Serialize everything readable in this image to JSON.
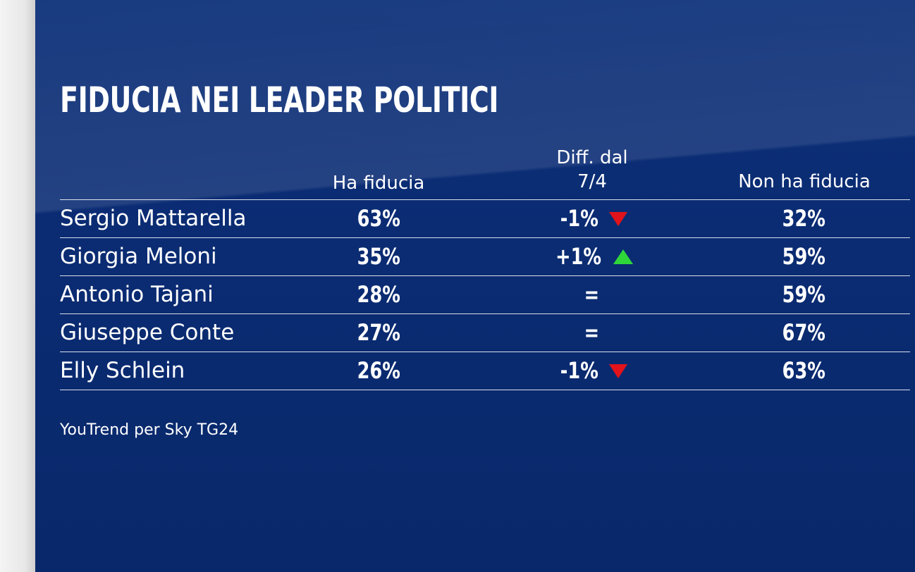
{
  "chart_data": {
    "type": "table",
    "title": "FIDUCIA NEI LEADER POLITICI",
    "columns": {
      "ha_fiducia": "Ha fiducia",
      "diff_line1": "Diff. dal",
      "diff_line2": "7/4",
      "non_ha_fiducia": "Non ha fiducia"
    },
    "rows": [
      {
        "name": "Sergio Mattarella",
        "ha_fiducia": "63%",
        "diff": "-1%",
        "trend": "down",
        "non_ha_fiducia": "32%"
      },
      {
        "name": "Giorgia Meloni",
        "ha_fiducia": "35%",
        "diff": "+1%",
        "trend": "up",
        "non_ha_fiducia": "59%"
      },
      {
        "name": "Antonio Tajani",
        "ha_fiducia": "28%",
        "diff": "=",
        "trend": "none",
        "non_ha_fiducia": "59%"
      },
      {
        "name": "Giuseppe Conte",
        "ha_fiducia": "27%",
        "diff": "=",
        "trend": "none",
        "non_ha_fiducia": "67%"
      },
      {
        "name": "Elly Schlein",
        "ha_fiducia": "26%",
        "diff": "-1%",
        "trend": "down",
        "non_ha_fiducia": "63%"
      }
    ],
    "source": "YouTrend per Sky TG24",
    "colors": {
      "background": "#0b2c73",
      "text": "#ffffff",
      "trend_down": "#e3131b",
      "trend_up": "#2ed63a"
    }
  }
}
